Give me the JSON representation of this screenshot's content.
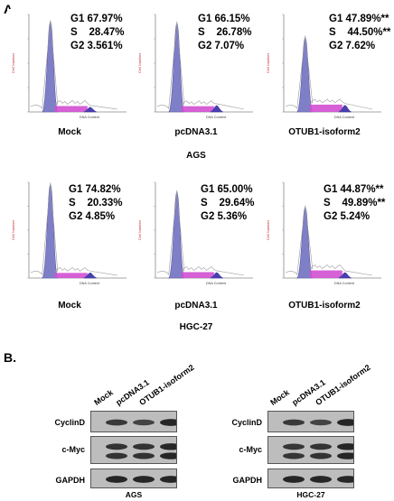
{
  "panel_a": {
    "label": "A.",
    "axis_y": "Cell Number",
    "axis_x": "DNA Content",
    "rows": [
      {
        "cell_line": "AGS",
        "plots": [
          {
            "condition": "Mock",
            "g1": "G1 67.97%",
            "s": "S    28.47%",
            "g2": "G2 3.561%"
          },
          {
            "condition": "pcDNA3.1",
            "g1": "G1 66.15%",
            "s": "S    26.78%",
            "g2": "G2 7.07%"
          },
          {
            "condition": "OTUB1-isoform2",
            "g1": "G1 47.89%**",
            "s": "S    44.50%**",
            "g2": "G2 7.62%"
          }
        ]
      },
      {
        "cell_line": "HGC-27",
        "plots": [
          {
            "condition": "Mock",
            "g1": "G1 74.82%",
            "s": "S    20.33%",
            "g2": "G2 4.85%"
          },
          {
            "condition": "pcDNA3.1",
            "g1": "G1 65.00%",
            "s": "S    29.64%",
            "g2": "G2 5.36%"
          },
          {
            "condition": "OTUB1-isoform2",
            "g1": "G1 44.87%**",
            "s": "S    49.89%**",
            "g2": "G2 5.24%"
          }
        ]
      }
    ],
    "chart_data": [
      {
        "type": "area",
        "cell_line": "AGS",
        "condition": "Mock",
        "values": {
          "G1": 67.97,
          "S": 28.47,
          "G2": 3.561
        }
      },
      {
        "type": "area",
        "cell_line": "AGS",
        "condition": "pcDNA3.1",
        "values": {
          "G1": 66.15,
          "S": 26.78,
          "G2": 7.07
        }
      },
      {
        "type": "area",
        "cell_line": "AGS",
        "condition": "OTUB1-isoform2",
        "values": {
          "G1": 47.89,
          "S": 44.5,
          "G2": 7.62
        }
      },
      {
        "type": "area",
        "cell_line": "HGC-27",
        "condition": "Mock",
        "values": {
          "G1": 74.82,
          "S": 20.33,
          "G2": 4.85
        }
      },
      {
        "type": "area",
        "cell_line": "HGC-27",
        "condition": "pcDNA3.1",
        "values": {
          "G1": 65.0,
          "S": 29.64,
          "G2": 5.36
        }
      },
      {
        "type": "area",
        "cell_line": "HGC-27",
        "condition": "OTUB1-isoform2",
        "values": {
          "G1": 44.87,
          "S": 49.89,
          "G2": 5.24
        }
      }
    ]
  },
  "panel_b": {
    "label": "B.",
    "lanes": [
      "Mock",
      "pcDNA3.1",
      "OTUB1-isoform2"
    ],
    "proteins": [
      "CyclinD",
      "c-Myc",
      "GAPDH"
    ],
    "blots": [
      {
        "cell_line": "AGS"
      },
      {
        "cell_line": "HGC-27"
      }
    ]
  },
  "colors": {
    "g1_fill": "#7f7fc8",
    "s_fill": "#d24fd2",
    "g2_fill": "#4a3fb0",
    "band": "#1e1e1e"
  }
}
